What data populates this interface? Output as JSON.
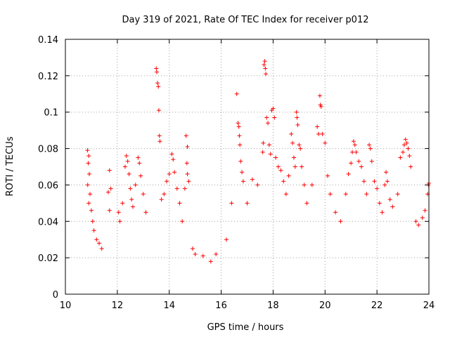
{
  "chart_data": {
    "type": "scatter",
    "title": "Day 319 of 2021, Rate Of TEC Index for receiver p012",
    "xlabel": "GPS time / hours",
    "ylabel": "ROTI / TECUs",
    "xlim": [
      10,
      24
    ],
    "ylim": [
      0,
      0.14
    ],
    "xticks": [
      "10",
      "12",
      "14",
      "16",
      "18",
      "20",
      "22",
      "24"
    ],
    "yticks": [
      "0",
      "0.02",
      "0.04",
      "0.06",
      "0.08",
      "0.1",
      "0.12",
      "0.14"
    ],
    "grid": true,
    "marker": "+",
    "color": "#ff0000",
    "series": [
      {
        "name": "ROTI",
        "points": [
          [
            10.85,
            0.079
          ],
          [
            10.9,
            0.076
          ],
          [
            10.88,
            0.072
          ],
          [
            10.92,
            0.066
          ],
          [
            10.86,
            0.06
          ],
          [
            10.95,
            0.055
          ],
          [
            10.9,
            0.05
          ],
          [
            11.0,
            0.046
          ],
          [
            11.05,
            0.04
          ],
          [
            11.1,
            0.035
          ],
          [
            11.2,
            0.03
          ],
          [
            11.3,
            0.028
          ],
          [
            11.4,
            0.025
          ],
          [
            11.65,
            0.056
          ],
          [
            11.7,
            0.068
          ],
          [
            11.75,
            0.058
          ],
          [
            11.7,
            0.046
          ],
          [
            12.05,
            0.045
          ],
          [
            12.1,
            0.04
          ],
          [
            12.2,
            0.05
          ],
          [
            12.3,
            0.07
          ],
          [
            12.35,
            0.076
          ],
          [
            12.4,
            0.073
          ],
          [
            12.45,
            0.066
          ],
          [
            12.5,
            0.058
          ],
          [
            12.55,
            0.052
          ],
          [
            12.6,
            0.048
          ],
          [
            12.7,
            0.06
          ],
          [
            12.8,
            0.075
          ],
          [
            12.85,
            0.072
          ],
          [
            12.9,
            0.065
          ],
          [
            13.0,
            0.055
          ],
          [
            13.1,
            0.045
          ],
          [
            13.5,
            0.124
          ],
          [
            13.52,
            0.122
          ],
          [
            13.55,
            0.116
          ],
          [
            13.58,
            0.114
          ],
          [
            13.6,
            0.101
          ],
          [
            13.62,
            0.087
          ],
          [
            13.64,
            0.084
          ],
          [
            13.7,
            0.052
          ],
          [
            13.8,
            0.055
          ],
          [
            13.9,
            0.062
          ],
          [
            14.0,
            0.066
          ],
          [
            14.1,
            0.077
          ],
          [
            14.15,
            0.074
          ],
          [
            14.2,
            0.067
          ],
          [
            14.3,
            0.058
          ],
          [
            14.4,
            0.05
          ],
          [
            14.5,
            0.04
          ],
          [
            14.65,
            0.087
          ],
          [
            14.7,
            0.081
          ],
          [
            14.68,
            0.072
          ],
          [
            14.7,
            0.066
          ],
          [
            14.75,
            0.062
          ],
          [
            14.6,
            0.058
          ],
          [
            14.9,
            0.025
          ],
          [
            15.0,
            0.022
          ],
          [
            15.3,
            0.021
          ],
          [
            15.6,
            0.018
          ],
          [
            15.8,
            0.022
          ],
          [
            16.2,
            0.03
          ],
          [
            16.4,
            0.05
          ],
          [
            16.6,
            0.11
          ],
          [
            16.65,
            0.094
          ],
          [
            16.68,
            0.092
          ],
          [
            16.7,
            0.087
          ],
          [
            16.72,
            0.082
          ],
          [
            16.75,
            0.073
          ],
          [
            16.8,
            0.067
          ],
          [
            16.85,
            0.062
          ],
          [
            17.0,
            0.05
          ],
          [
            17.2,
            0.063
          ],
          [
            17.4,
            0.06
          ],
          [
            17.6,
            0.078
          ],
          [
            17.62,
            0.083
          ],
          [
            17.65,
            0.126
          ],
          [
            17.68,
            0.128
          ],
          [
            17.7,
            0.124
          ],
          [
            17.72,
            0.121
          ],
          [
            17.75,
            0.097
          ],
          [
            17.8,
            0.094
          ],
          [
            17.85,
            0.082
          ],
          [
            17.9,
            0.077
          ],
          [
            17.95,
            0.101
          ],
          [
            18.0,
            0.102
          ],
          [
            18.05,
            0.097
          ],
          [
            18.1,
            0.075
          ],
          [
            18.2,
            0.07
          ],
          [
            18.3,
            0.068
          ],
          [
            18.4,
            0.062
          ],
          [
            18.5,
            0.055
          ],
          [
            18.6,
            0.065
          ],
          [
            18.7,
            0.088
          ],
          [
            18.75,
            0.083
          ],
          [
            18.8,
            0.075
          ],
          [
            18.85,
            0.07
          ],
          [
            18.9,
            0.1
          ],
          [
            18.92,
            0.097
          ],
          [
            18.95,
            0.093
          ],
          [
            19.0,
            0.082
          ],
          [
            19.05,
            0.08
          ],
          [
            19.1,
            0.07
          ],
          [
            19.2,
            0.06
          ],
          [
            19.3,
            0.05
          ],
          [
            19.5,
            0.06
          ],
          [
            19.7,
            0.092
          ],
          [
            19.75,
            0.088
          ],
          [
            19.8,
            0.109
          ],
          [
            19.82,
            0.104
          ],
          [
            19.85,
            0.103
          ],
          [
            19.9,
            0.088
          ],
          [
            20.0,
            0.083
          ],
          [
            20.1,
            0.065
          ],
          [
            20.2,
            0.055
          ],
          [
            20.4,
            0.045
          ],
          [
            20.6,
            0.04
          ],
          [
            20.8,
            0.055
          ],
          [
            20.9,
            0.066
          ],
          [
            21.0,
            0.072
          ],
          [
            21.05,
            0.078
          ],
          [
            21.1,
            0.084
          ],
          [
            21.15,
            0.082
          ],
          [
            21.2,
            0.078
          ],
          [
            21.3,
            0.073
          ],
          [
            21.4,
            0.07
          ],
          [
            21.5,
            0.062
          ],
          [
            21.6,
            0.055
          ],
          [
            21.7,
            0.082
          ],
          [
            21.75,
            0.08
          ],
          [
            21.8,
            0.073
          ],
          [
            21.9,
            0.062
          ],
          [
            22.0,
            0.058
          ],
          [
            22.1,
            0.05
          ],
          [
            22.2,
            0.045
          ],
          [
            22.3,
            0.06
          ],
          [
            22.35,
            0.067
          ],
          [
            22.4,
            0.062
          ],
          [
            22.5,
            0.052
          ],
          [
            22.6,
            0.048
          ],
          [
            22.8,
            0.055
          ],
          [
            22.9,
            0.075
          ],
          [
            23.0,
            0.078
          ],
          [
            23.05,
            0.082
          ],
          [
            23.1,
            0.085
          ],
          [
            23.15,
            0.083
          ],
          [
            23.2,
            0.08
          ],
          [
            23.25,
            0.076
          ],
          [
            23.3,
            0.07
          ],
          [
            23.5,
            0.04
          ],
          [
            23.6,
            0.038
          ],
          [
            23.75,
            0.042
          ],
          [
            23.85,
            0.046
          ],
          [
            23.95,
            0.055
          ],
          [
            23.98,
            0.06
          ],
          [
            24.0,
            0.061
          ]
        ]
      }
    ]
  }
}
